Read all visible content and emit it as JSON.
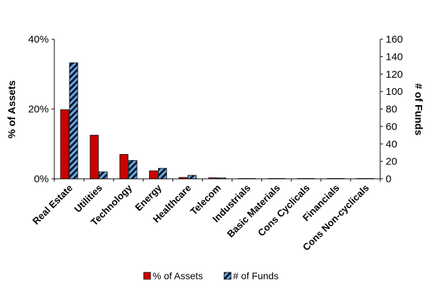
{
  "chart_data": {
    "type": "bar",
    "title": "",
    "categories": [
      "Real Estate",
      "Utilities",
      "Technology",
      "Energy",
      "Healthcare",
      "Telecom",
      "Industrials",
      "Basic Materials",
      "Cons Cyclicals",
      "Financials",
      "Cons Non-cyclicals"
    ],
    "series": [
      {
        "name": "% of Assets",
        "axis": "left",
        "values": [
          19.8,
          12.5,
          7.0,
          2.3,
          0.4,
          0.3,
          0,
          0,
          0,
          0,
          0
        ],
        "color": "#cc0000",
        "pattern": "solid"
      },
      {
        "name": "# of Funds",
        "axis": "right",
        "values": [
          133,
          8,
          21,
          12,
          4,
          1,
          0,
          0,
          0,
          0,
          0
        ],
        "color": "#6fa8dc",
        "pattern": "diagonal-stripes-dark"
      }
    ],
    "y_left": {
      "label": "% of Assets",
      "range": [
        0,
        40
      ],
      "ticks": [
        0,
        20,
        40
      ],
      "tick_labels": [
        "0%",
        "20%",
        "40%"
      ]
    },
    "y_right": {
      "label": "# of Funds",
      "range": [
        0,
        160
      ],
      "ticks": [
        0,
        20,
        40,
        60,
        80,
        100,
        120,
        140,
        160
      ],
      "tick_labels": [
        "0",
        "20",
        "40",
        "60",
        "80",
        "100",
        "120",
        "140",
        "160"
      ]
    },
    "xlabel": "",
    "grid": false,
    "legend": {
      "position": "bottom",
      "entries": [
        "% of Assets",
        "# of Funds"
      ]
    }
  }
}
